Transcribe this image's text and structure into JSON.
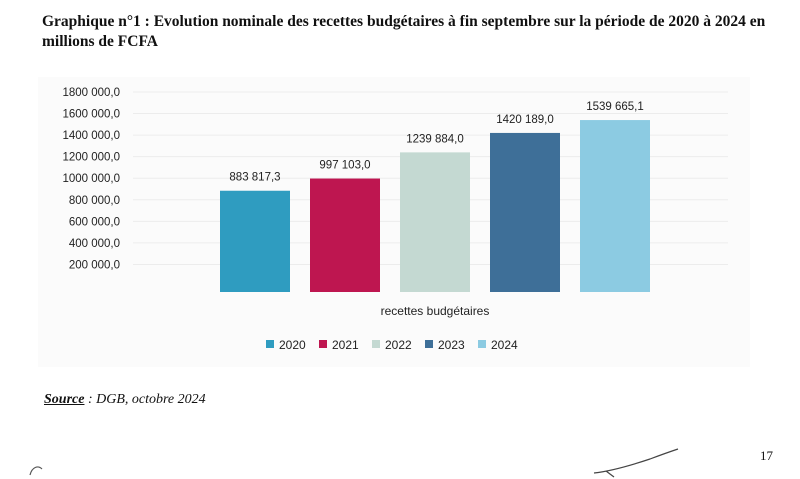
{
  "caption": {
    "text": "Graphique n°1 : Evolution nominale des recettes budgétaires à fin septembre sur la période de 2020 à 2024 en millions de FCFA"
  },
  "chart_data": {
    "type": "bar",
    "title": "Graphique n°1 : Evolution nominale des recettes budgétaires à fin septembre sur la période de 2020 à 2024 en millions de FCFA",
    "xlabel": "recettes budgétaires",
    "ylabel": "",
    "ylim": [
      0,
      1800000
    ],
    "yticks": [
      200000,
      400000,
      600000,
      800000,
      1000000,
      1200000,
      1400000,
      1600000,
      1800000
    ],
    "ytick_labels": [
      "200 000,0",
      "400 000,0",
      "600 000,0",
      "800 000,0",
      "1000 000,0",
      "1200 000,0",
      "1400 000,0",
      "1600 000,0",
      "1800 000,0"
    ],
    "categories": [
      "recettes budgétaires"
    ],
    "grid": true,
    "legend_position": "bottom",
    "series": [
      {
        "name": "2020",
        "value": 883817.3,
        "label": "883 817,3",
        "color": "#2f9cc0"
      },
      {
        "name": "2021",
        "value": 997103.0,
        "label": "997 103,0",
        "color": "#be1650"
      },
      {
        "name": "2022",
        "value": 1239884.0,
        "label": "1239 884,0",
        "color": "#c4d9d2"
      },
      {
        "name": "2023",
        "value": 1420189.0,
        "label": "1420 189,0",
        "color": "#3e6f98"
      },
      {
        "name": "2024",
        "value": 1539665.1,
        "label": "1539 665,1",
        "color": "#8ccbe2"
      }
    ]
  },
  "source": {
    "key": "Source",
    "text": " : DGB, octobre 2024"
  },
  "page_number": "17"
}
